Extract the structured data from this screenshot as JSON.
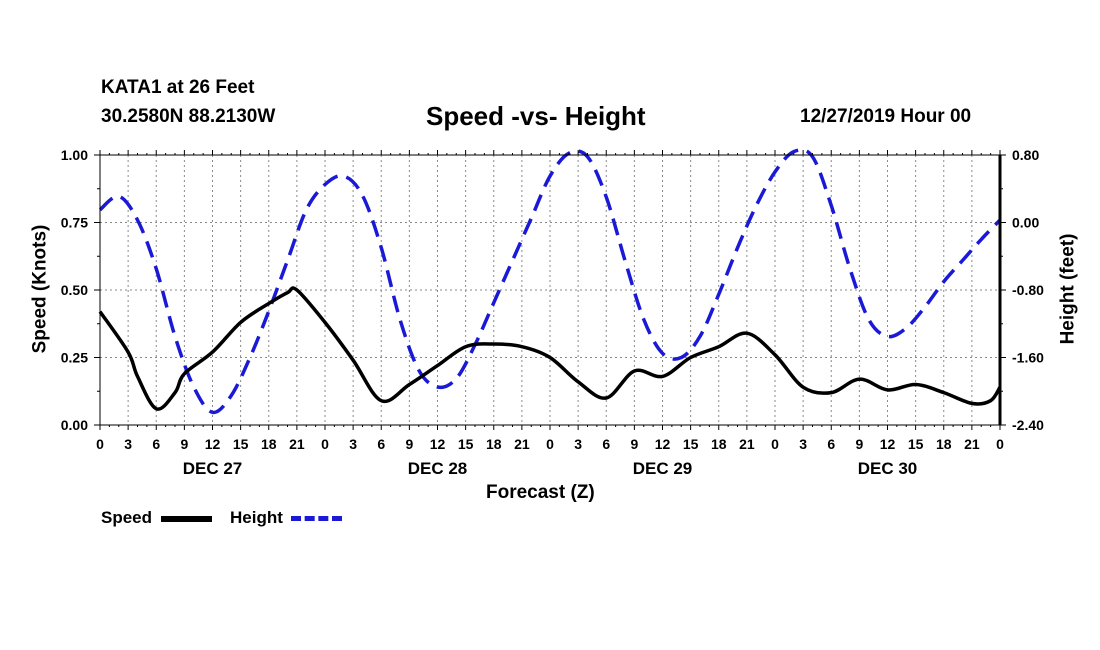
{
  "header": {
    "station": "KATA1 at 26 Feet",
    "coords": "30.2580N 88.2130W",
    "title": "Speed -vs- Height",
    "timestamp": "12/27/2019 Hour 00"
  },
  "chart_data": {
    "type": "line",
    "title": "Speed -vs- Height",
    "xlabel": "Forecast (Z)",
    "ylabel_left": "Speed (Knots)",
    "ylabel_right": "Height (feet)",
    "x_unit": "forecast hour",
    "xlim": [
      0,
      96
    ],
    "ylim_left": [
      0,
      1
    ],
    "ylim_right": [
      -2.4,
      0.8
    ],
    "yticks_left": [
      "0.00",
      "0.25",
      "0.50",
      "0.75",
      "1.00"
    ],
    "yticks_right": [
      "-2.40",
      "-1.60",
      "-0.80",
      "0.00",
      "0.80"
    ],
    "xtick_labels": [
      "0",
      "3",
      "6",
      "9",
      "12",
      "15",
      "18",
      "21",
      "0",
      "3",
      "6",
      "9",
      "12",
      "15",
      "18",
      "21",
      "0",
      "3",
      "6",
      "9",
      "12",
      "15",
      "18",
      "21",
      "0",
      "3",
      "6",
      "9",
      "12",
      "15",
      "18",
      "21",
      "0"
    ],
    "date_labels": [
      "DEC 27",
      "DEC 28",
      "DEC 29",
      "DEC 30"
    ],
    "grid": true,
    "colors": {
      "speed": "#000000",
      "height": "#1a1ad6"
    },
    "series": [
      {
        "name": "Speed",
        "axis": "left",
        "style": "solid",
        "x": [
          0,
          3,
          4,
          6,
          8,
          9,
          12,
          15,
          18,
          20,
          21,
          24,
          27,
          30,
          33,
          36,
          39,
          42,
          45,
          48,
          51,
          54,
          57,
          60,
          63,
          66,
          69,
          72,
          75,
          78,
          81,
          84,
          87,
          90,
          93,
          95,
          96
        ],
        "values": [
          0.42,
          0.27,
          0.18,
          0.06,
          0.12,
          0.19,
          0.27,
          0.38,
          0.45,
          0.49,
          0.5,
          0.38,
          0.24,
          0.09,
          0.15,
          0.22,
          0.29,
          0.3,
          0.29,
          0.25,
          0.16,
          0.1,
          0.2,
          0.18,
          0.25,
          0.29,
          0.34,
          0.26,
          0.14,
          0.12,
          0.17,
          0.13,
          0.15,
          0.12,
          0.08,
          0.09,
          0.14
        ]
      },
      {
        "name": "Height",
        "axis": "right",
        "style": "dashed",
        "x": [
          0,
          2,
          4,
          6,
          8,
          10,
          12,
          14,
          16,
          18,
          20,
          22,
          24,
          26,
          28,
          30,
          32,
          34,
          36,
          38,
          40,
          42,
          44,
          46,
          48,
          50,
          52,
          54,
          56,
          58,
          60,
          62,
          64,
          66,
          68,
          70,
          72,
          74,
          76,
          78,
          80,
          82,
          84,
          86,
          88,
          90,
          92,
          94,
          96
        ],
        "values": [
          0.15,
          0.31,
          0.03,
          -0.55,
          -1.35,
          -1.95,
          -2.25,
          -2.05,
          -1.6,
          -1.05,
          -0.45,
          0.15,
          0.45,
          0.55,
          0.32,
          -0.3,
          -1.15,
          -1.75,
          -1.95,
          -1.85,
          -1.45,
          -0.95,
          -0.45,
          0.05,
          0.55,
          0.82,
          0.78,
          0.3,
          -0.45,
          -1.15,
          -1.55,
          -1.6,
          -1.35,
          -0.85,
          -0.3,
          0.2,
          0.6,
          0.84,
          0.78,
          0.2,
          -0.55,
          -1.15,
          -1.35,
          -1.25,
          -1.0,
          -0.7,
          -0.45,
          -0.2,
          0.03
        ]
      }
    ]
  }
}
